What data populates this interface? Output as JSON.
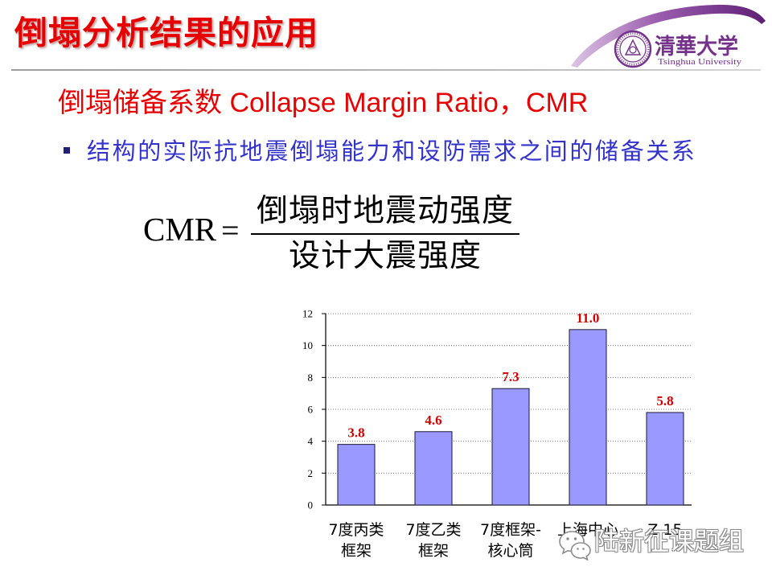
{
  "slide": {
    "title": "倒塌分析结果的应用",
    "subtitle": "倒塌储备系数 Collapse Margin Ratio，CMR",
    "bullet_text": "结构的实际抗地震倒塌能力和设防需求之间的储备关系",
    "formula": {
      "lhs": "CMR",
      "operator": "=",
      "numerator": "倒塌时地震动强度",
      "denominator": "设计大震强度"
    }
  },
  "logo": {
    "icon": "tsinghua-seal-icon",
    "name_cn": "清華大学",
    "name_en": "Tsinghua University"
  },
  "watermark": {
    "icon": "wechat-icon",
    "text": "陆新征课题组"
  },
  "colors": {
    "title": "#e60000",
    "subtitle": "#e60000",
    "bullet_text": "#3333cc",
    "bullet_marker": "#1f1f7a",
    "logo_purple": "#74328a"
  },
  "chart_data": {
    "type": "bar",
    "title": "",
    "xlabel": "",
    "ylabel": "",
    "categories": [
      [
        "7度丙类",
        "框架"
      ],
      [
        "7度乙类",
        "框架"
      ],
      [
        "7度框架-",
        "核心筒"
      ],
      [
        "上海中心"
      ],
      [
        "Z 15"
      ]
    ],
    "values": [
      3.8,
      4.6,
      7.3,
      11.0,
      5.8
    ],
    "data_labels": [
      "3.8",
      "4.6",
      "7.3",
      "11.0",
      "5.8"
    ],
    "ylim": [
      0,
      12
    ],
    "yticks": [
      0,
      2,
      4,
      6,
      8,
      10,
      12
    ],
    "grid": true,
    "show_legend": false,
    "bar_color": "#9999ff",
    "bar_stroke": "#1a1a33",
    "label_color": "#cc0000"
  }
}
